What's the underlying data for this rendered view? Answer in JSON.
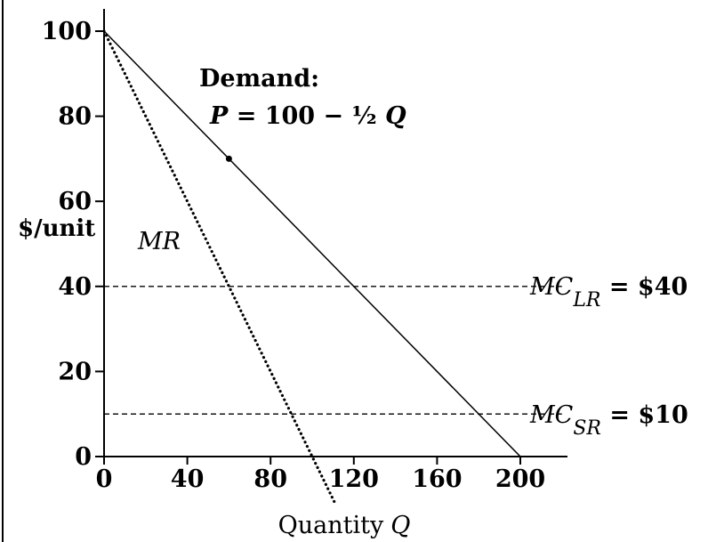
{
  "chart_data": {
    "type": "line",
    "xlabel_text": "Quantity",
    "xlabel_var": "Q",
    "ylabel": "$/unit",
    "xlim": [
      0,
      240
    ],
    "ylim": [
      0,
      100
    ],
    "x_ticks": [
      0,
      40,
      80,
      120,
      160,
      200
    ],
    "y_ticks": [
      0,
      20,
      40,
      60,
      80,
      100
    ],
    "grid": false,
    "series": [
      {
        "name": "Demand",
        "style": "solid",
        "points": [
          [
            0,
            100
          ],
          [
            200,
            0
          ]
        ]
      },
      {
        "name": "MR",
        "style": "dotted",
        "points": [
          [
            0,
            100
          ],
          [
            111,
            -11
          ]
        ]
      },
      {
        "name": "MC_LR",
        "style": "dashed",
        "y": 40,
        "x_range": [
          0,
          220
        ]
      },
      {
        "name": "MC_SR",
        "style": "dashed",
        "y": 10,
        "x_range": [
          0,
          220
        ]
      }
    ],
    "marker": {
      "x": 60,
      "y": 70
    },
    "annotations": {
      "demand_title": "Demand:",
      "demand_eq_var1": "P",
      "demand_eq_mid": " = 100 − ½ ",
      "demand_eq_var2": "Q",
      "mr_label": "MR",
      "mc_lr_main": "MC",
      "mc_lr_sub": "LR",
      "mc_lr_value": " = $40",
      "mc_sr_main": "MC",
      "mc_sr_sub": "SR",
      "mc_sr_value": " = $10"
    },
    "colors": {
      "line": "#000000",
      "background": "#ffffff"
    }
  }
}
